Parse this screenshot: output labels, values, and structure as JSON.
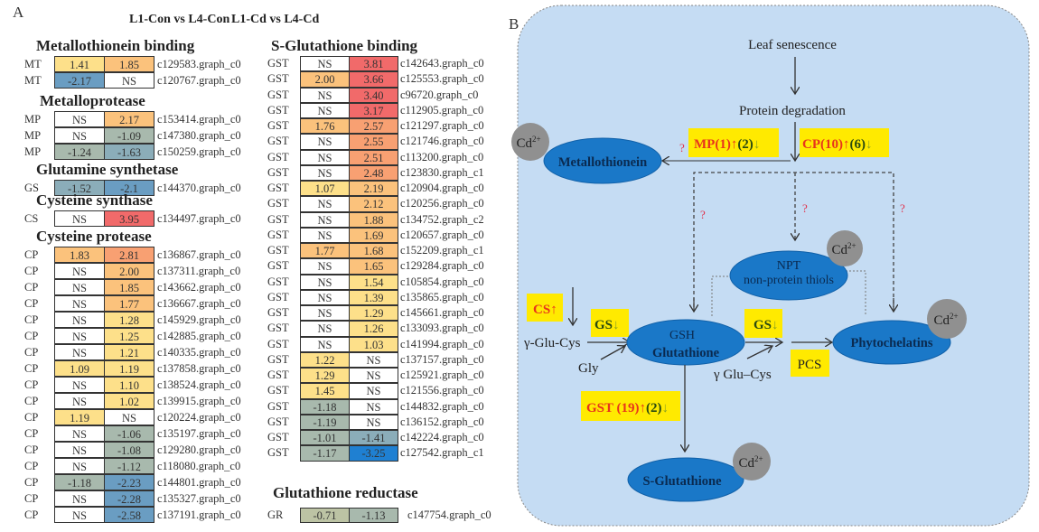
{
  "panel_a": {
    "label": "A",
    "column_headers": [
      "L1-Con vs L4-Con",
      "L1-Cd vs L4-Cd"
    ],
    "left_sections": [
      {
        "title": "Metallothionein binding",
        "rows": [
          {
            "label": "MT",
            "v1": "1.41",
            "v2": "1.85",
            "id": "c129583.graph_c0"
          },
          {
            "label": "MT",
            "v1": "-2.17",
            "v2": "NS",
            "id": "c120767.graph_c0"
          }
        ]
      },
      {
        "title": "Metalloprotease",
        "rows": [
          {
            "label": "MP",
            "v1": "NS",
            "v2": "2.17",
            "id": "c153414.graph_c0"
          },
          {
            "label": "MP",
            "v1": "NS",
            "v2": "-1.09",
            "id": "c147380.graph_c0"
          },
          {
            "label": "MP",
            "v1": "-1.24",
            "v2": "-1.63",
            "id": "c150259.graph_c0"
          }
        ]
      },
      {
        "title": "Glutamine synthetase",
        "rows": [
          {
            "label": "GS",
            "v1": "-1.52",
            "v2": "-2.1",
            "id": "c144370.graph_c0"
          }
        ]
      },
      {
        "title": "Cysteine synthase",
        "rows": [
          {
            "label": "CS",
            "v1": "NS",
            "v2": "3.95",
            "id": "c134497.graph_c0"
          }
        ]
      },
      {
        "title": "Cysteine protease",
        "rows": [
          {
            "label": "CP",
            "v1": "1.83",
            "v2": "2.81",
            "id": "c136867.graph_c0"
          },
          {
            "label": "CP",
            "v1": "NS",
            "v2": "2.00",
            "id": "c137311.graph_c0"
          },
          {
            "label": "CP",
            "v1": "NS",
            "v2": "1.85",
            "id": "c143662.graph_c0"
          },
          {
            "label": "CP",
            "v1": "NS",
            "v2": "1.77",
            "id": "c136667.graph_c0"
          },
          {
            "label": "CP",
            "v1": "NS",
            "v2": "1.28",
            "id": "c145929.graph_c0"
          },
          {
            "label": "CP",
            "v1": "NS",
            "v2": "1.25",
            "id": "c142885.graph_c0"
          },
          {
            "label": "CP",
            "v1": "NS",
            "v2": "1.21",
            "id": "c140335.graph_c0"
          },
          {
            "label": "CP",
            "v1": "1.09",
            "v2": "1.19",
            "id": "c137858.graph_c0"
          },
          {
            "label": "CP",
            "v1": "NS",
            "v2": "1.10",
            "id": "c138524.graph_c0"
          },
          {
            "label": "CP",
            "v1": "NS",
            "v2": "1.02",
            "id": "c139915.graph_c0"
          },
          {
            "label": "CP",
            "v1": "1.19",
            "v2": "NS",
            "id": "c120224.graph_c0"
          },
          {
            "label": "CP",
            "v1": "NS",
            "v2": "-1.06",
            "id": "c135197.graph_c0"
          },
          {
            "label": "CP",
            "v1": "NS",
            "v2": "-1.08",
            "id": "c129280.graph_c0"
          },
          {
            "label": "CP",
            "v1": "NS",
            "v2": "-1.12",
            "id": "c118080.graph_c0"
          },
          {
            "label": "CP",
            "v1": "-1.18",
            "v2": "-2.23",
            "id": "c144801.graph_c0"
          },
          {
            "label": "CP",
            "v1": "NS",
            "v2": "-2.28",
            "id": "c135327.graph_c0"
          },
          {
            "label": "CP",
            "v1": "NS",
            "v2": "-2.58",
            "id": "c137191.graph_c0"
          }
        ]
      }
    ],
    "right_sections": [
      {
        "title": "S-Glutathione binding",
        "rows": [
          {
            "label": "GST",
            "v1": "NS",
            "v2": "3.81",
            "id": "c142643.graph_c0"
          },
          {
            "label": "GST",
            "v1": "2.00",
            "v2": "3.66",
            "id": "c125553.graph_c0"
          },
          {
            "label": "GST",
            "v1": "NS",
            "v2": "3.40",
            "id": "c96720.graph_c0"
          },
          {
            "label": "GST",
            "v1": "NS",
            "v2": "3.17",
            "id": "c112905.graph_c0"
          },
          {
            "label": "GST",
            "v1": "1.76",
            "v2": "2.57",
            "id": "c121297.graph_c0"
          },
          {
            "label": "GST",
            "v1": "NS",
            "v2": "2.55",
            "id": "c121746.graph_c0"
          },
          {
            "label": "GST",
            "v1": "NS",
            "v2": "2.51",
            "id": "c113200.graph_c0"
          },
          {
            "label": "GST",
            "v1": "NS",
            "v2": "2.48",
            "id": "c123830.graph_c1"
          },
          {
            "label": "GST",
            "v1": "1.07",
            "v2": "2.19",
            "id": "c120904.graph_c0"
          },
          {
            "label": "GST",
            "v1": "NS",
            "v2": "2.12",
            "id": "c120256.graph_c0"
          },
          {
            "label": "GST",
            "v1": "NS",
            "v2": "1.88",
            "id": "c134752.graph_c2"
          },
          {
            "label": "GST",
            "v1": "NS",
            "v2": "1.69",
            "id": "c120657.graph_c0"
          },
          {
            "label": "GST",
            "v1": "1.77",
            "v2": "1.68",
            "id": "c152209.graph_c1"
          },
          {
            "label": "GST",
            "v1": "NS",
            "v2": "1.65",
            "id": "c129284.graph_c0"
          },
          {
            "label": "GST",
            "v1": "NS",
            "v2": "1.54",
            "id": "c105854.graph_c0"
          },
          {
            "label": "GST",
            "v1": "NS",
            "v2": "1.39",
            "id": "c135865.graph_c0"
          },
          {
            "label": "GST",
            "v1": "NS",
            "v2": "1.29",
            "id": "c145661.graph_c0"
          },
          {
            "label": "GST",
            "v1": "NS",
            "v2": "1.26",
            "id": "c133093.graph_c0"
          },
          {
            "label": "GST",
            "v1": "NS",
            "v2": "1.03",
            "id": "c141994.graph_c0"
          },
          {
            "label": "GST",
            "v1": "1.22",
            "v2": "NS",
            "id": "c137157.graph_c0"
          },
          {
            "label": "GST",
            "v1": "1.29",
            "v2": "NS",
            "id": "c125921.graph_c0"
          },
          {
            "label": "GST",
            "v1": "1.45",
            "v2": "NS",
            "id": "c121556.graph_c0"
          },
          {
            "label": "GST",
            "v1": "-1.18",
            "v2": "NS",
            "id": "c144832.graph_c0"
          },
          {
            "label": "GST",
            "v1": "-1.19",
            "v2": "NS",
            "id": "c136152.graph_c0"
          },
          {
            "label": "GST",
            "v1": "-1.01",
            "v2": "-1.41",
            "id": "c142224.graph_c0"
          },
          {
            "label": "GST",
            "v1": "-1.17",
            "v2": "-3.25",
            "id": "c127542.graph_c1"
          }
        ]
      },
      {
        "title": "Glutathione reductase",
        "rows": [
          {
            "label": "GR",
            "v1": "-0.71",
            "v2": "-1.13",
            "id": "c147754.graph_c0"
          }
        ]
      }
    ],
    "colors": {
      "ns": "#ffffff",
      "up_low": "#fde08a",
      "up_mid": "#fbc27c",
      "up_high": "#f8a072",
      "up_max": "#f16a6a",
      "down_low": "#a8b9ad",
      "down_mid": "#8badb9",
      "down_high": "#6a9dc2",
      "down_max": "#1f80d2",
      "down_weak": "#bcc3a4"
    }
  },
  "panel_b": {
    "label": "B",
    "leaf_senescence": "Leaf senescence",
    "protein_degradation": "Protein degradation",
    "mp_box": {
      "name": "MP(1)",
      "up": "↑",
      "count_down": "(2)",
      "down": "↓"
    },
    "cp_box": {
      "name": "CP(10)",
      "up": "↑",
      "count_down": "(6)",
      "down": "↓"
    },
    "cs_box": {
      "name": "CS",
      "up": "↑"
    },
    "gs_box_left": {
      "name": "GS",
      "down": "↓"
    },
    "gs_box_right": {
      "name": "GS",
      "down": "↓"
    },
    "pcs_box": "PCS",
    "gst_box": {
      "name": "GST (19)",
      "up": "↑",
      "count_down": "(2)",
      "down": "↓"
    },
    "metallothionein": "Metallothionein",
    "npt": "NPT",
    "npt_full": "non-protein thiols",
    "gsh": "GSH",
    "glutathione": "Glutathione",
    "phytochelatins": "Phytochelatins",
    "s_glutathione": "S-Glutathione",
    "gamma_glu_cys_left": "γ-Glu-Cys",
    "gly": "Gly",
    "gamma_glu_cys_right": "γ Glu–Cys",
    "cd": "Cd",
    "cd_charge": "2+",
    "question": "?",
    "colors": {
      "background": "#c5dcf3",
      "ellipse": "#1a78c8",
      "box": "#ffea00",
      "up_text": "#e8341c",
      "down_text": "#2a4a10",
      "cd": "#909090",
      "question": "#e0304a"
    }
  }
}
